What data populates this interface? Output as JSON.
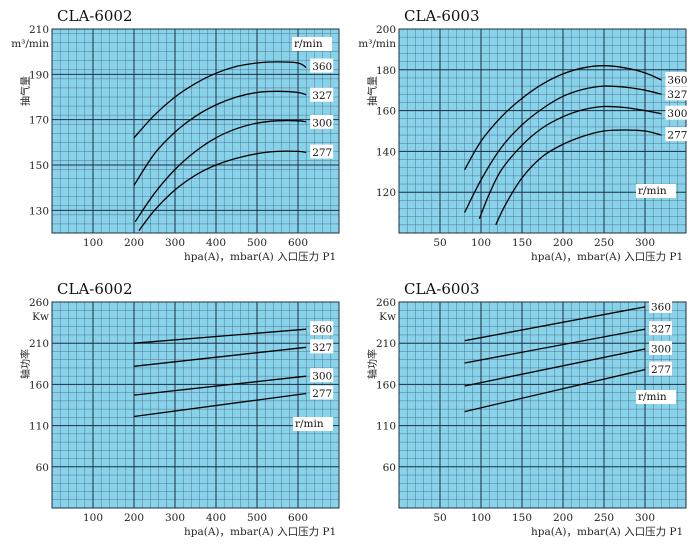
{
  "colors": {
    "plot_bg": "#89d3ea",
    "grid_minor": "#4a6a88",
    "grid_major": "#1d2f45",
    "curve": "#000000",
    "label_bg": "#ffffff"
  },
  "chart_data": [
    {
      "type": "line",
      "title": "CLA-6002",
      "ylabel": "抽气量",
      "yunit": "m³/min",
      "xlabel": "hpa(A)，mbar(A) 入口压力 P1",
      "speed_label": "r/min",
      "xlim": [
        0,
        700
      ],
      "ylim": [
        120,
        210
      ],
      "xticks": [
        100,
        200,
        300,
        400,
        500,
        600
      ],
      "yticks": [
        130,
        150,
        170,
        190,
        210
      ],
      "series": [
        {
          "name": "360",
          "x": [
            200,
            250,
            300,
            350,
            400,
            450,
            500,
            550,
            600,
            620
          ],
          "y": [
            162,
            172,
            180,
            186,
            190.5,
            193.5,
            195,
            195.5,
            195,
            193
          ]
        },
        {
          "name": "327",
          "x": [
            200,
            250,
            300,
            350,
            400,
            450,
            500,
            550,
            600,
            620
          ],
          "y": [
            141,
            155,
            164.5,
            171.5,
            176.5,
            180,
            182,
            182.5,
            182,
            181
          ]
        },
        {
          "name": "300",
          "x": [
            203,
            250,
            300,
            350,
            400,
            450,
            500,
            550,
            600,
            620
          ],
          "y": [
            125,
            137.5,
            148,
            156,
            162,
            166,
            168.5,
            169.5,
            169.5,
            169
          ]
        },
        {
          "name": "277",
          "x": [
            212,
            250,
            300,
            350,
            400,
            450,
            500,
            550,
            600,
            620
          ],
          "y": [
            121,
            130,
            139,
            145.5,
            150,
            153,
            155,
            156,
            156,
            155.5
          ]
        }
      ]
    },
    {
      "type": "line",
      "title": "CLA-6003",
      "ylabel": "抽气量",
      "yunit": "m³/min",
      "xlabel": "hpa(A)，mbar(A) 入口压力 P1",
      "speed_label": "r/min",
      "xlim": [
        0,
        350
      ],
      "ylim": [
        100,
        200
      ],
      "xticks": [
        50,
        100,
        150,
        200,
        250,
        300
      ],
      "yticks": [
        120,
        140,
        160,
        180,
        200
      ],
      "series": [
        {
          "name": "360",
          "x": [
            80,
            100,
            125,
            150,
            175,
            200,
            225,
            250,
            275,
            300,
            320
          ],
          "y": [
            131,
            145,
            157,
            166,
            173,
            178,
            181,
            182,
            181,
            178.5,
            175
          ]
        },
        {
          "name": "327",
          "x": [
            80,
            100,
            125,
            150,
            175,
            200,
            225,
            250,
            275,
            300,
            320
          ],
          "y": [
            110,
            126,
            142,
            153,
            161,
            167,
            170.5,
            172,
            171.5,
            170,
            168
          ]
        },
        {
          "name": "300",
          "x": [
            98,
            110,
            125,
            150,
            175,
            200,
            225,
            250,
            275,
            300,
            320
          ],
          "y": [
            107,
            119,
            131,
            143,
            151.5,
            157,
            160.5,
            162,
            161.5,
            160,
            158.5
          ]
        },
        {
          "name": "277",
          "x": [
            118,
            130,
            150,
            175,
            200,
            225,
            250,
            275,
            300,
            320
          ],
          "y": [
            104,
            114,
            127,
            137.5,
            143.5,
            147.5,
            150,
            150.5,
            150,
            148
          ]
        }
      ]
    },
    {
      "type": "line",
      "title": "CLA-6002",
      "ylabel": "轴功率",
      "yunit": "Kw",
      "xlabel": "hpa(A)，mbar(A) 入口压力 P1",
      "speed_label": "r/min",
      "xlim": [
        0,
        700
      ],
      "ylim": [
        10,
        260
      ],
      "xticks": [
        100,
        200,
        300,
        400,
        500,
        600
      ],
      "yticks": [
        60,
        110,
        160,
        210,
        260
      ],
      "series": [
        {
          "name": "360",
          "x": [
            200,
            620
          ],
          "y": [
            210,
            227
          ]
        },
        {
          "name": "327",
          "x": [
            200,
            620
          ],
          "y": [
            182,
            205
          ]
        },
        {
          "name": "300",
          "x": [
            200,
            620
          ],
          "y": [
            147,
            170
          ]
        },
        {
          "name": "277",
          "x": [
            200,
            620
          ],
          "y": [
            121,
            149
          ]
        }
      ]
    },
    {
      "type": "line",
      "title": "CLA-6003",
      "ylabel": "轴功率",
      "yunit": "Kw",
      "xlabel": "hpa(A)，mbar(A) 入口压力 P1",
      "speed_label": "r/min",
      "xlim": [
        0,
        350
      ],
      "ylim": [
        10,
        260
      ],
      "xticks": [
        50,
        100,
        150,
        200,
        250,
        300
      ],
      "yticks": [
        60,
        110,
        160,
        210,
        260
      ],
      "series": [
        {
          "name": "360",
          "x": [
            80,
            300
          ],
          "y": [
            213,
            254
          ]
        },
        {
          "name": "327",
          "x": [
            80,
            300
          ],
          "y": [
            186,
            227
          ]
        },
        {
          "name": "300",
          "x": [
            80,
            300
          ],
          "y": [
            158,
            203
          ]
        },
        {
          "name": "277",
          "x": [
            80,
            300
          ],
          "y": [
            127,
            178
          ]
        }
      ]
    }
  ]
}
